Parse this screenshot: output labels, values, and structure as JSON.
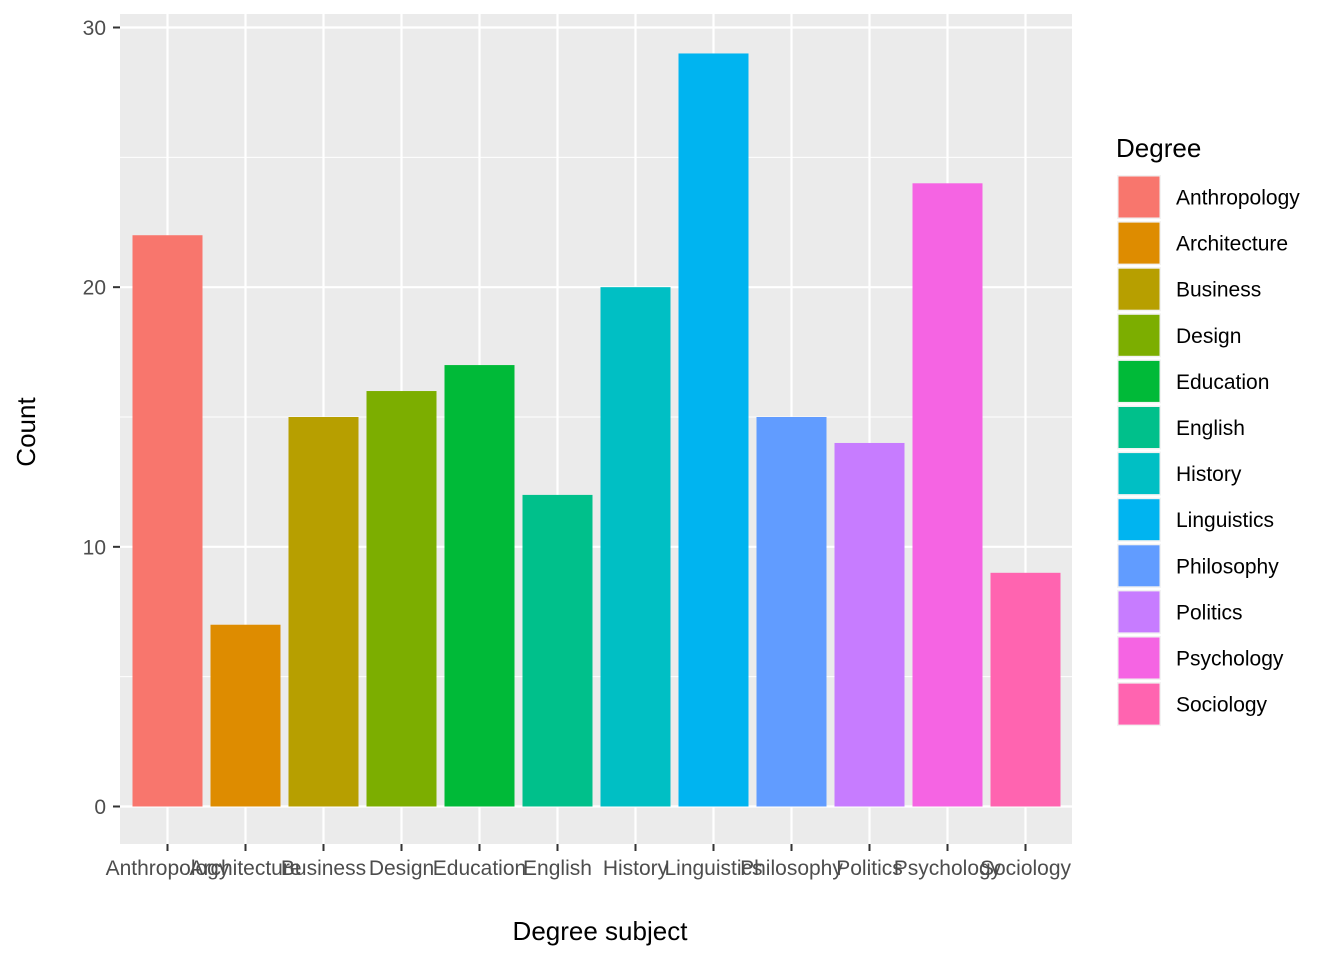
{
  "chart_data": {
    "type": "bar",
    "title": "",
    "xlabel": "Degree subject",
    "ylabel": "Count",
    "ylim": [
      0,
      30
    ],
    "yticks": [
      0,
      10,
      20,
      30
    ],
    "grid": true,
    "categories": [
      "Anthropology",
      "Architecture",
      "Business",
      "Design",
      "Education",
      "English",
      "History",
      "Linguistics",
      "Philosophy",
      "Politics",
      "Psychology",
      "Sociology"
    ],
    "values": [
      22,
      7,
      15,
      16,
      17,
      12,
      20,
      29,
      15,
      14,
      24,
      9
    ],
    "colors": [
      "#F8766D",
      "#DE8C00",
      "#B79F00",
      "#7CAE00",
      "#00BA38",
      "#00C08B",
      "#00BFC4",
      "#00B4F0",
      "#619CFF",
      "#C77CFF",
      "#F564E3",
      "#FF64B0"
    ],
    "legend": {
      "title": "Degree",
      "position": "right",
      "entries": [
        "Anthropology",
        "Architecture",
        "Business",
        "Design",
        "Education",
        "English",
        "History",
        "Linguistics",
        "Philosophy",
        "Politics",
        "Psychology",
        "Sociology"
      ]
    },
    "panel_background": "#EBEBEB",
    "grid_color": "#FFFFFF"
  }
}
